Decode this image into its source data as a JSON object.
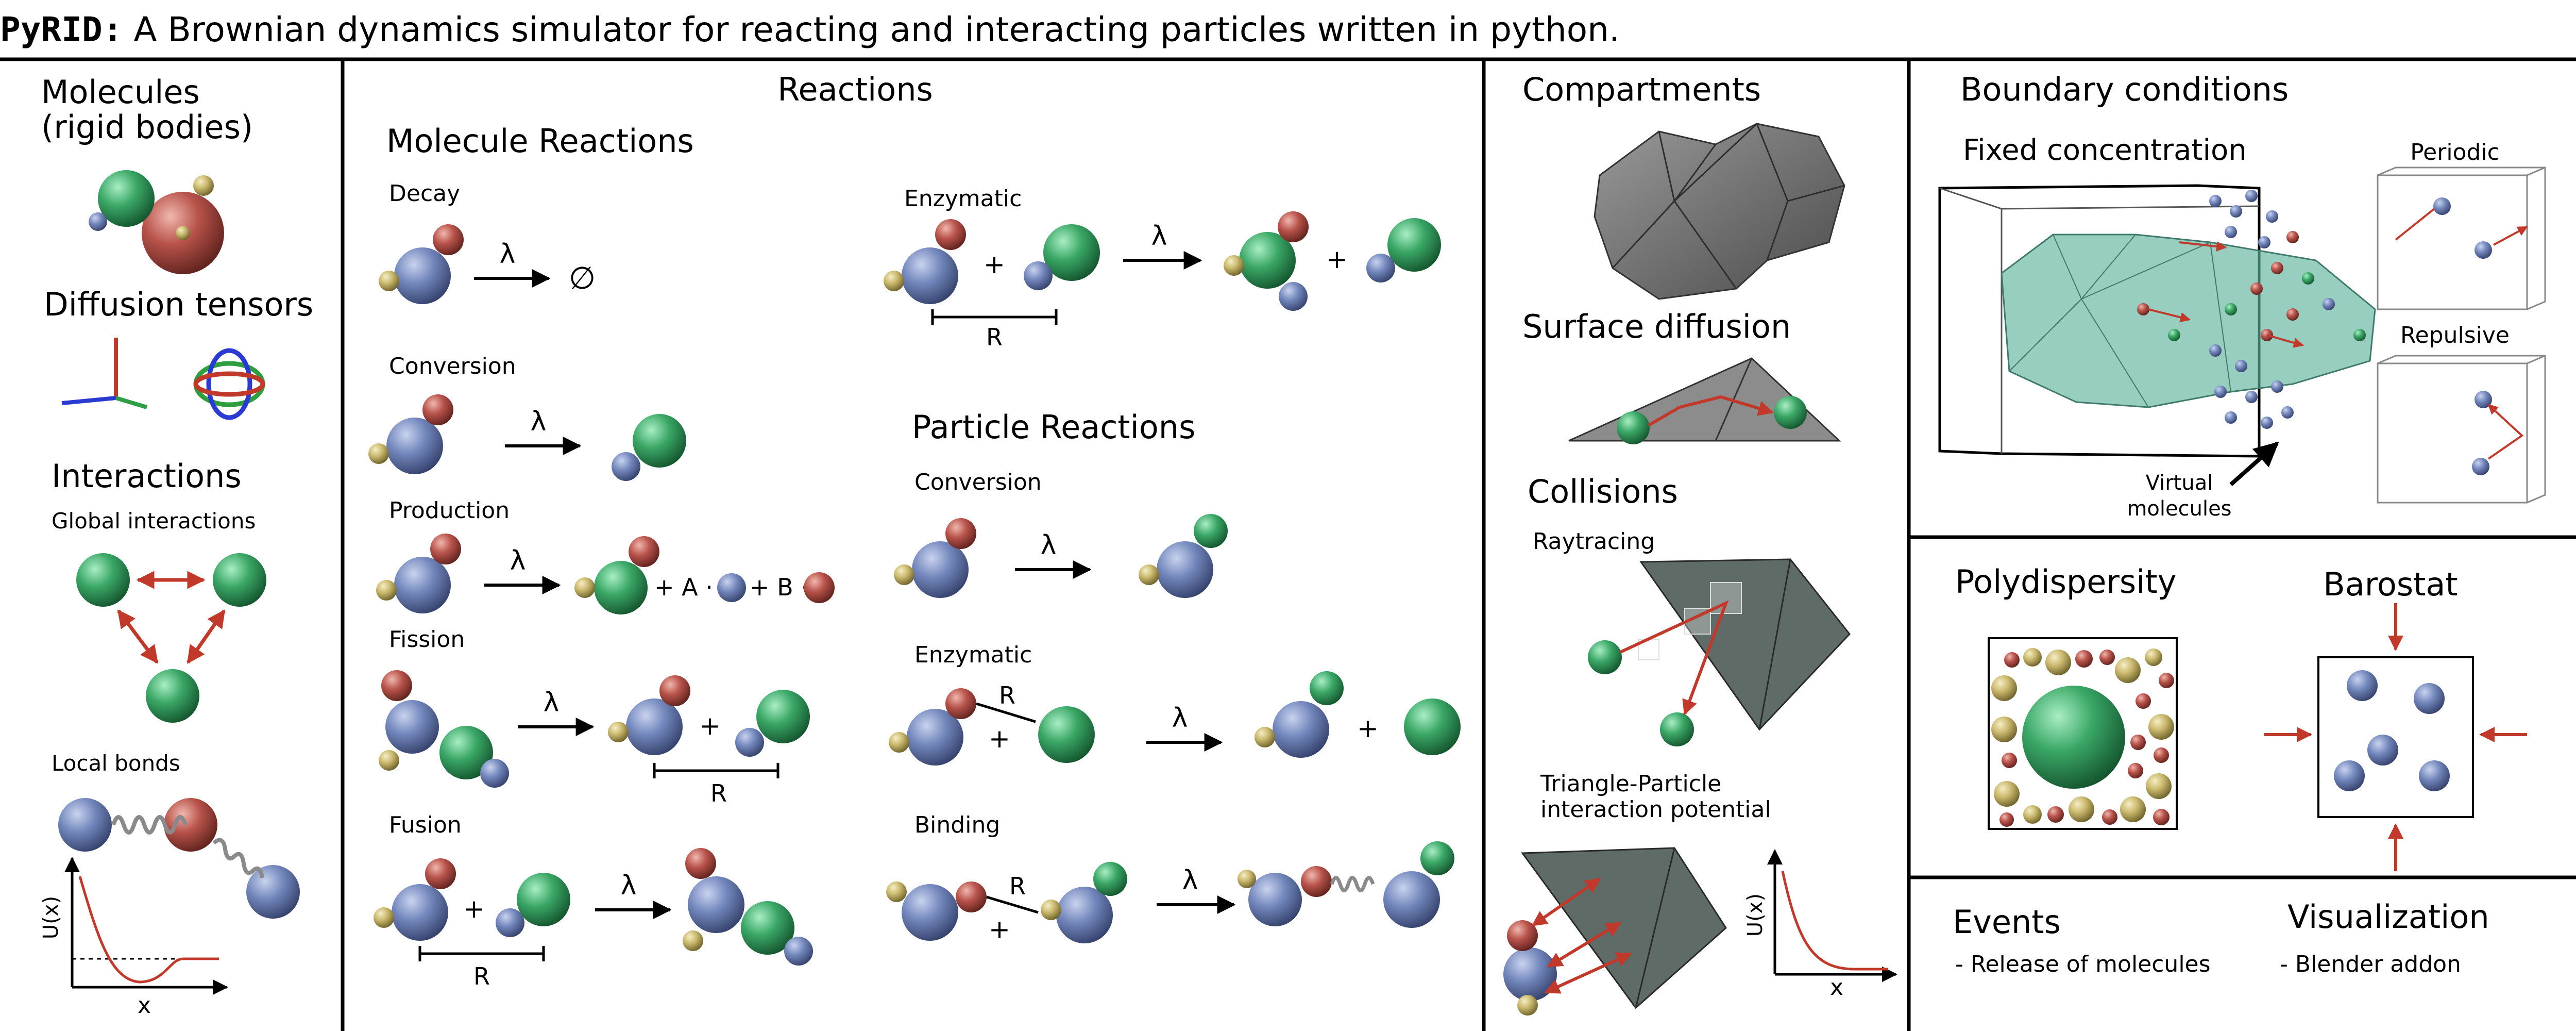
{
  "title": {
    "program": "PyRID:",
    "text": " A Brownian dynamics simulator for reacting and interacting particles written in python."
  },
  "molecules": {
    "heading1": "Molecules",
    "heading2": "(rigid bodies)",
    "diffusion": "Diffusion tensors",
    "interactions": "Interactions",
    "global": "Global interactions",
    "local": "Local bonds",
    "plot_ylabel": "U(x)",
    "plot_xlabel": "x"
  },
  "reactions": {
    "heading": "Reactions",
    "molecule_reactions": "Molecule Reactions",
    "decay": "Decay",
    "conversion": "Conversion",
    "production": "Production",
    "fission": "Fission",
    "fusion": "Fusion",
    "enzymatic": "Enzymatic",
    "particle_reactions": "Particle Reactions",
    "p_conversion": "Conversion",
    "p_enzymatic": "Enzymatic",
    "binding": "Binding",
    "lambda": "λ",
    "empty": "∅",
    "plus": "+",
    "R": "R",
    "prodA": "+ A ·",
    "prodB": "+ B ·"
  },
  "compartments": {
    "heading": "Compartments",
    "surface": "Surface diffusion",
    "collisions": "Collisions",
    "raytracing": "Raytracing",
    "tri1": "Triangle-Particle",
    "tri2": "interaction potential",
    "plot_ylabel": "U(x)",
    "plot_xlabel": "x"
  },
  "boundary": {
    "heading": "Boundary conditions",
    "fixed": "Fixed concentration",
    "periodic": "Periodic",
    "repulsive": "Repulsive",
    "virtual1": "Virtual",
    "virtual2": "molecules"
  },
  "poly": {
    "heading": "Polydispersity"
  },
  "baro": {
    "heading": "Barostat"
  },
  "events": {
    "heading": "Events",
    "item": "- Release of molecules"
  },
  "vis": {
    "heading": "Visualization",
    "item": "- Blender addon"
  },
  "colors": {
    "blue": "#6f82b4",
    "green": "#3aa766",
    "red": "#b8534b",
    "yellow": "#c9b86c",
    "arrow_red": "#c0392b"
  }
}
